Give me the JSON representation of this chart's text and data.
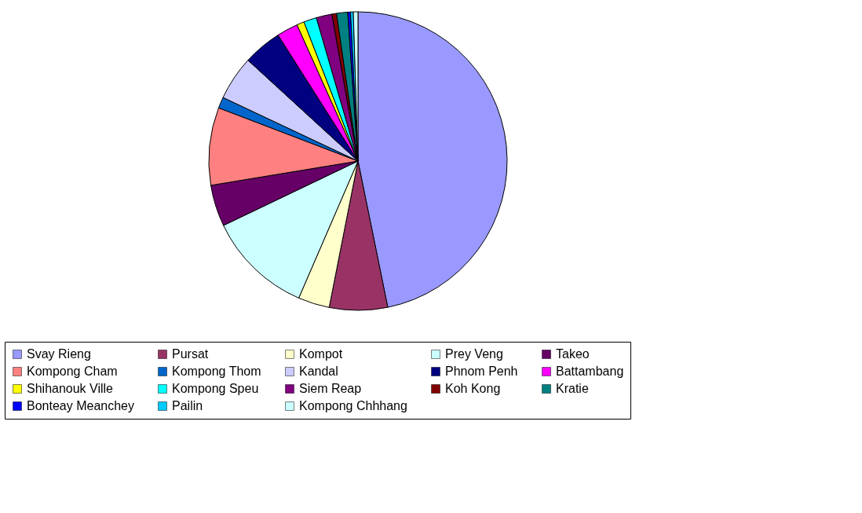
{
  "chart_data": {
    "type": "pie",
    "categories": [
      "Svay Rieng",
      "Pursat",
      "Kompot",
      "Prey Veng",
      "Takeo",
      "Kompong Cham",
      "Kompong Thom",
      "Kandal",
      "Phnom Penh",
      "Battambang",
      "Shihanouk Ville",
      "Kompong Speu",
      "Siem Reap",
      "Koh Kong",
      "Kratie",
      "Bonteay Meanchey",
      "Pailin",
      "Kompong Chhhang"
    ],
    "values": [
      46.8,
      6.3,
      3.4,
      11.4,
      4.5,
      8.4,
      1.2,
      4.8,
      4.2,
      2.3,
      0.8,
      1.4,
      1.7,
      0.5,
      1.2,
      0.3,
      0.3,
      0.5
    ],
    "colors": [
      "#9999ff",
      "#993366",
      "#ffffcc",
      "#ccffff",
      "#660066",
      "#ff8080",
      "#0066cc",
      "#ccccff",
      "#000080",
      "#ff00ff",
      "#ffff00",
      "#00ffff",
      "#800080",
      "#800000",
      "#008080",
      "#0000ff",
      "#00ccff",
      "#ccffff"
    ],
    "legend": "bottom"
  }
}
